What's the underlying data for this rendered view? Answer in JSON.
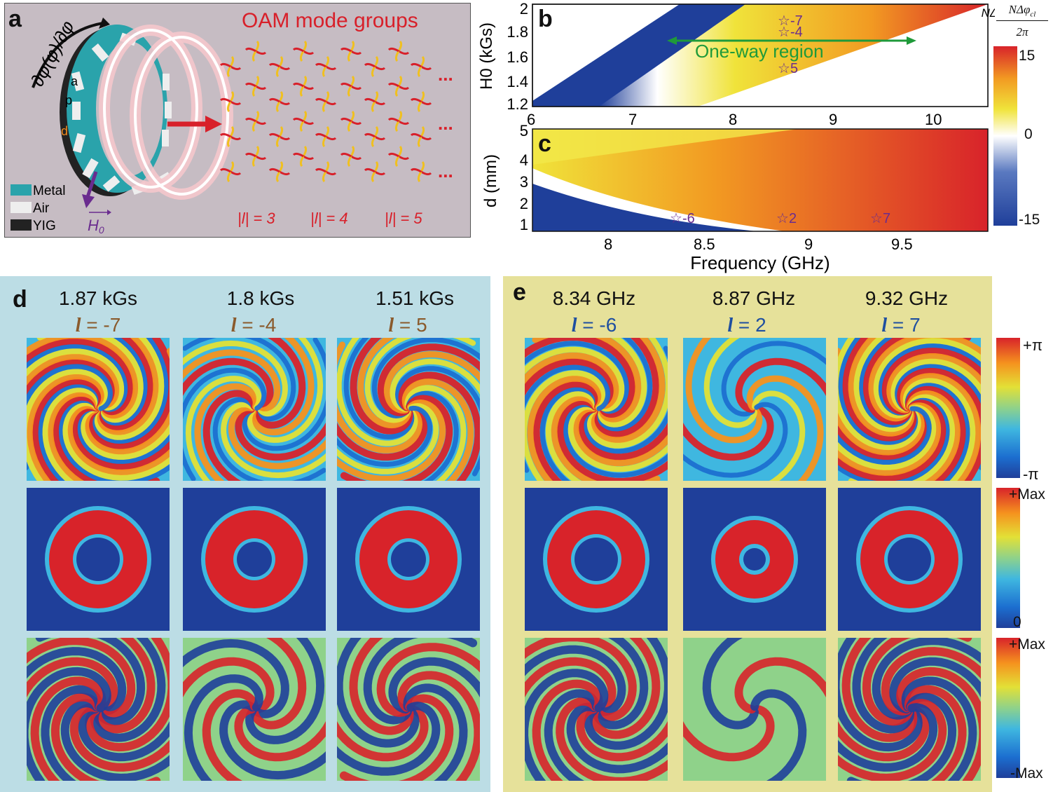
{
  "panel_a": {
    "label": "a",
    "title": "OAM mode groups",
    "derivative": "∂φ(φ)/∂φ",
    "dims": {
      "a": "a",
      "p": "p",
      "d": "d"
    },
    "legend": [
      {
        "name": "Metal",
        "color": "#2aa3ab"
      },
      {
        "name": "Air",
        "color": "#eeeeee"
      },
      {
        "name": "YIG",
        "color": "#222222"
      }
    ],
    "field": "H",
    "field_sub": "0",
    "ellipsis": "...",
    "groups": [
      "|l| = 3",
      "|l| = 4",
      "|l| = 5"
    ]
  },
  "panel_b": {
    "label": "b",
    "ylabel": "H0 (kGs)",
    "xticks": [
      "6",
      "7",
      "8",
      "9",
      "10"
    ],
    "yticks": [
      "1.2",
      "1.4",
      "1.6",
      "1.8",
      "2"
    ],
    "region": "One-way region",
    "stars": [
      "-7",
      "-4",
      "5"
    ]
  },
  "panel_c": {
    "label": "c",
    "ylabel": "d (mm)",
    "xlabel": "Frequency (GHz)",
    "xticks": [
      "8",
      "8.5",
      "9",
      "9.5"
    ],
    "yticks": [
      "1",
      "2",
      "3",
      "4",
      "5"
    ],
    "stars": [
      "-6",
      "2",
      "7"
    ]
  },
  "colorbar_bc": {
    "title_num": "NΔφ",
    "title_sub": "cl",
    "title_den": "2π",
    "ticks": [
      "15",
      "0",
      "-15"
    ]
  },
  "panel_d": {
    "label": "d",
    "columns": [
      {
        "field": "1.87 kGs",
        "l": "-7"
      },
      {
        "field": "1.8 kGs",
        "l": "-4"
      },
      {
        "field": "1.51 kGs",
        "l": "5"
      }
    ]
  },
  "panel_e": {
    "label": "e",
    "columns": [
      {
        "freq": "8.34 GHz",
        "l": "-6"
      },
      {
        "freq": "8.87 GHz",
        "l": "2"
      },
      {
        "freq": "9.32 GHz",
        "l": "7"
      }
    ]
  },
  "l_symbol": "l",
  "eq": "=",
  "colorbars": {
    "phase": {
      "top": "+π",
      "bottom": "-π"
    },
    "amplitude": {
      "top": "+Max",
      "bottom": "0"
    },
    "real": {
      "top": "+Max",
      "bottom": "-Max"
    }
  },
  "colors": {
    "accent_red": "#d8202a",
    "star_purple": "#6a2c8f",
    "green": "#1f9a3a",
    "l_brown": "#8a5a2c",
    "l_blue": "#1f4fa0"
  }
}
